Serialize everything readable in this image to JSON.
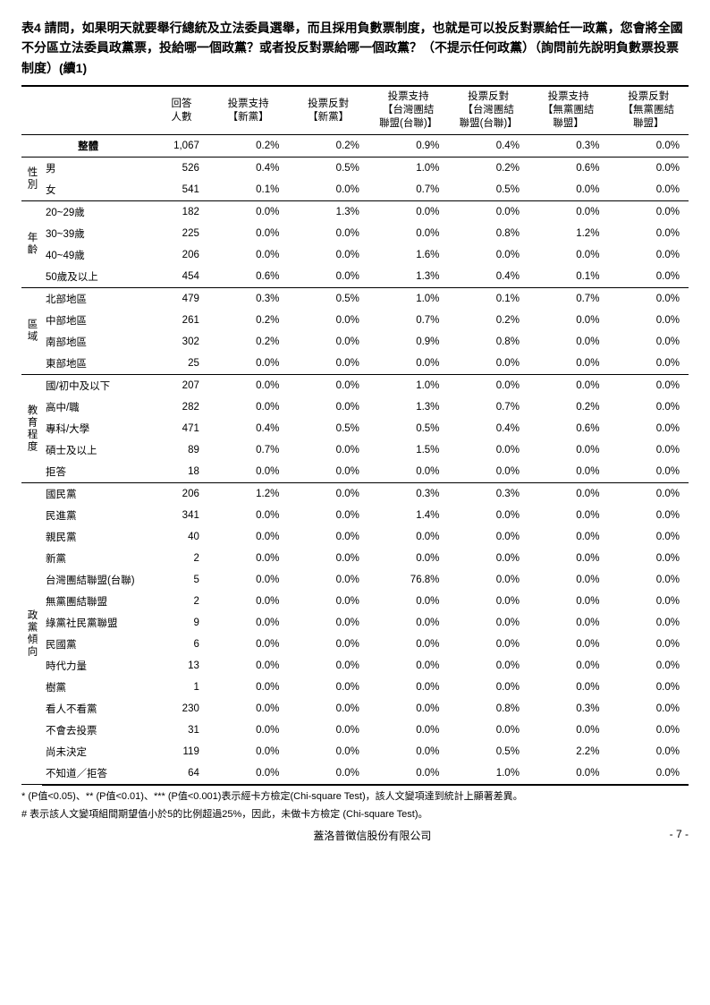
{
  "title": "表4 請問，如果明天就要舉行總統及立法委員選舉，而且採用負數票制度，也就是可以投反對票給任一政黨，您會將全國不分區立法委員政黨票，投給哪一個政黨？或者投反對票給哪一個政黨？（不提示任何政黨）（詢問前先說明負數票投票制度）(續1)",
  "headers": {
    "respondents": "回答\n人數",
    "c1": "投票支持\n【新黨】",
    "c2": "投票反對\n【新黨】",
    "c3": "投票支持\n【台灣團結\n聯盟(台聯)】",
    "c4": "投票反對\n【台灣團結\n聯盟(台聯)】",
    "c5": "投票支持\n【無黨團結\n聯盟】",
    "c6": "投票反對\n【無黨團結\n聯盟】"
  },
  "overall_label": "整體",
  "overall": {
    "n": "1,067",
    "v": [
      "0.2%",
      "0.2%",
      "0.9%",
      "0.4%",
      "0.3%",
      "0.0%"
    ]
  },
  "groups": [
    {
      "cat": "性別",
      "rows": [
        {
          "label": "男",
          "n": "526",
          "v": [
            "0.4%",
            "0.5%",
            "1.0%",
            "0.2%",
            "0.6%",
            "0.0%"
          ]
        },
        {
          "label": "女",
          "n": "541",
          "v": [
            "0.1%",
            "0.0%",
            "0.7%",
            "0.5%",
            "0.0%",
            "0.0%"
          ]
        }
      ]
    },
    {
      "cat": "年齡",
      "rows": [
        {
          "label": "20~29歲",
          "n": "182",
          "v": [
            "0.0%",
            "1.3%",
            "0.0%",
            "0.0%",
            "0.0%",
            "0.0%"
          ]
        },
        {
          "label": "30~39歲",
          "n": "225",
          "v": [
            "0.0%",
            "0.0%",
            "0.0%",
            "0.8%",
            "1.2%",
            "0.0%"
          ]
        },
        {
          "label": "40~49歲",
          "n": "206",
          "v": [
            "0.0%",
            "0.0%",
            "1.6%",
            "0.0%",
            "0.0%",
            "0.0%"
          ]
        },
        {
          "label": "50歲及以上",
          "n": "454",
          "v": [
            "0.6%",
            "0.0%",
            "1.3%",
            "0.4%",
            "0.1%",
            "0.0%"
          ]
        }
      ]
    },
    {
      "cat": "區域",
      "rows": [
        {
          "label": "北部地區",
          "n": "479",
          "v": [
            "0.3%",
            "0.5%",
            "1.0%",
            "0.1%",
            "0.7%",
            "0.0%"
          ]
        },
        {
          "label": "中部地區",
          "n": "261",
          "v": [
            "0.2%",
            "0.0%",
            "0.7%",
            "0.2%",
            "0.0%",
            "0.0%"
          ]
        },
        {
          "label": "南部地區",
          "n": "302",
          "v": [
            "0.2%",
            "0.0%",
            "0.9%",
            "0.8%",
            "0.0%",
            "0.0%"
          ]
        },
        {
          "label": "東部地區",
          "n": "25",
          "v": [
            "0.0%",
            "0.0%",
            "0.0%",
            "0.0%",
            "0.0%",
            "0.0%"
          ]
        }
      ]
    },
    {
      "cat": "教育程度",
      "rows": [
        {
          "label": "國/初中及以下",
          "n": "207",
          "v": [
            "0.0%",
            "0.0%",
            "1.0%",
            "0.0%",
            "0.0%",
            "0.0%"
          ]
        },
        {
          "label": "高中/職",
          "n": "282",
          "v": [
            "0.0%",
            "0.0%",
            "1.3%",
            "0.7%",
            "0.2%",
            "0.0%"
          ]
        },
        {
          "label": "專科/大學",
          "n": "471",
          "v": [
            "0.4%",
            "0.5%",
            "0.5%",
            "0.4%",
            "0.6%",
            "0.0%"
          ]
        },
        {
          "label": "碩士及以上",
          "n": "89",
          "v": [
            "0.7%",
            "0.0%",
            "1.5%",
            "0.0%",
            "0.0%",
            "0.0%"
          ]
        },
        {
          "label": "拒答",
          "n": "18",
          "v": [
            "0.0%",
            "0.0%",
            "0.0%",
            "0.0%",
            "0.0%",
            "0.0%"
          ]
        }
      ]
    },
    {
      "cat": "政黨傾向",
      "rows": [
        {
          "label": "國民黨",
          "n": "206",
          "v": [
            "1.2%",
            "0.0%",
            "0.3%",
            "0.3%",
            "0.0%",
            "0.0%"
          ]
        },
        {
          "label": "民進黨",
          "n": "341",
          "v": [
            "0.0%",
            "0.0%",
            "1.4%",
            "0.0%",
            "0.0%",
            "0.0%"
          ]
        },
        {
          "label": "親民黨",
          "n": "40",
          "v": [
            "0.0%",
            "0.0%",
            "0.0%",
            "0.0%",
            "0.0%",
            "0.0%"
          ]
        },
        {
          "label": "新黨",
          "n": "2",
          "v": [
            "0.0%",
            "0.0%",
            "0.0%",
            "0.0%",
            "0.0%",
            "0.0%"
          ]
        },
        {
          "label": "台灣團結聯盟(台聯)",
          "n": "5",
          "v": [
            "0.0%",
            "0.0%",
            "76.8%",
            "0.0%",
            "0.0%",
            "0.0%"
          ]
        },
        {
          "label": "無黨團結聯盟",
          "n": "2",
          "v": [
            "0.0%",
            "0.0%",
            "0.0%",
            "0.0%",
            "0.0%",
            "0.0%"
          ]
        },
        {
          "label": "綠黨社民黨聯盟",
          "n": "9",
          "v": [
            "0.0%",
            "0.0%",
            "0.0%",
            "0.0%",
            "0.0%",
            "0.0%"
          ]
        },
        {
          "label": "民國黨",
          "n": "6",
          "v": [
            "0.0%",
            "0.0%",
            "0.0%",
            "0.0%",
            "0.0%",
            "0.0%"
          ]
        },
        {
          "label": "時代力量",
          "n": "13",
          "v": [
            "0.0%",
            "0.0%",
            "0.0%",
            "0.0%",
            "0.0%",
            "0.0%"
          ]
        },
        {
          "label": "樹黨",
          "n": "1",
          "v": [
            "0.0%",
            "0.0%",
            "0.0%",
            "0.0%",
            "0.0%",
            "0.0%"
          ]
        },
        {
          "label": "看人不看黨",
          "n": "230",
          "v": [
            "0.0%",
            "0.0%",
            "0.0%",
            "0.8%",
            "0.3%",
            "0.0%"
          ]
        },
        {
          "label": "不會去投票",
          "n": "31",
          "v": [
            "0.0%",
            "0.0%",
            "0.0%",
            "0.0%",
            "0.0%",
            "0.0%"
          ]
        },
        {
          "label": "尚未決定",
          "n": "119",
          "v": [
            "0.0%",
            "0.0%",
            "0.0%",
            "0.5%",
            "2.2%",
            "0.0%"
          ]
        },
        {
          "label": "不知道／拒答",
          "n": "64",
          "v": [
            "0.0%",
            "0.0%",
            "0.0%",
            "1.0%",
            "0.0%",
            "0.0%"
          ]
        }
      ]
    }
  ],
  "footnotes": [
    "* (P值<0.05)、** (P值<0.01)、*** (P值<0.001)表示經卡方檢定(Chi-square Test)，該人文變項達到統計上顯著差異。",
    "# 表示該人文變項組間期望值小於5的比例超過25%，因此，未做卡方檢定 (Chi-square Test)。"
  ],
  "company": "蓋洛普徵信股份有限公司",
  "page": "- 7 -"
}
